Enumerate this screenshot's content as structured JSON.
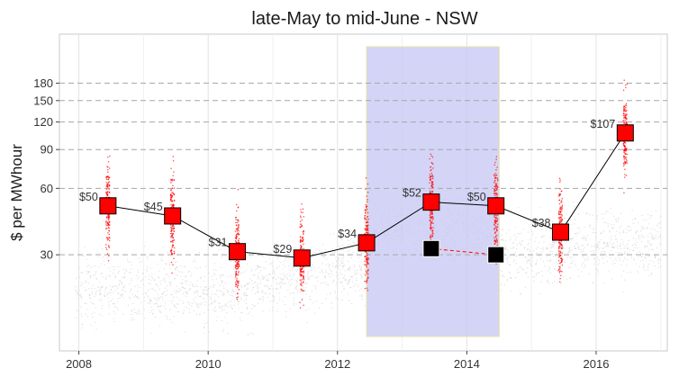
{
  "chart_data": {
    "type": "scatter",
    "title": "late-May to mid-June - NSW",
    "xlabel": "",
    "ylabel": "$ per MWhour",
    "x_scale": "linear",
    "y_scale": "log",
    "xlim": [
      2007.7,
      2017.1
    ],
    "ylim": [
      11,
      300
    ],
    "x_ticks": [
      2008,
      2010,
      2012,
      2014,
      2016
    ],
    "x_tick_labels": [
      "2008",
      "2010",
      "2012",
      "2014",
      "2016"
    ],
    "y_ticks": [
      30,
      60,
      90,
      120,
      150,
      180
    ],
    "y_tick_labels": [
      "30",
      "60",
      "90",
      "120",
      "150",
      "180"
    ],
    "grid": true,
    "highlight_period": {
      "from": 2012.45,
      "to": 2014.5,
      "color": "#c8c8f4"
    },
    "background_points": {
      "color": "#bdbdbd",
      "description": "half-hourly prices"
    },
    "winter_points": {
      "color": "#ff0000"
    },
    "series": [
      {
        "color": "#ff0000",
        "marker": "square",
        "points": [
          {
            "x": 2008.45,
            "y": 50,
            "label": "$50"
          },
          {
            "x": 2009.45,
            "y": 45,
            "label": "$45"
          },
          {
            "x": 2010.45,
            "y": 31,
            "label": "$31"
          },
          {
            "x": 2011.45,
            "y": 29,
            "label": "$29"
          },
          {
            "x": 2012.45,
            "y": 34,
            "label": "$34"
          },
          {
            "x": 2013.45,
            "y": 52,
            "label": "$52"
          },
          {
            "x": 2014.45,
            "y": 50,
            "label": "$50"
          },
          {
            "x": 2015.45,
            "y": 38,
            "label": "$38"
          },
          {
            "x": 2016.45,
            "y": 107,
            "label": "$107"
          }
        ]
      },
      {
        "color": "#000000",
        "marker": "square",
        "line_style": "dashed",
        "line_color": "#ff0000",
        "points": [
          {
            "x": 2013.45,
            "y": 32
          },
          {
            "x": 2014.45,
            "y": 30
          }
        ]
      }
    ]
  }
}
